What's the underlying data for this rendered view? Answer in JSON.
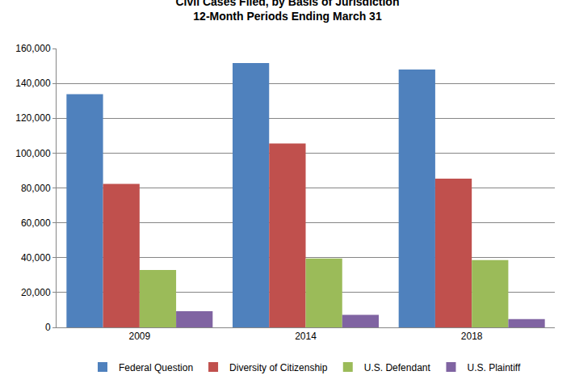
{
  "chart_data": {
    "type": "bar",
    "title": "Civil Cases Filed, by Basis of Jurisdiction",
    "subtitle": "12-Month Periods Ending March 31",
    "categories": [
      "2009",
      "2014",
      "2018"
    ],
    "series": [
      {
        "name": "Federal Question",
        "color": "#4f81bd",
        "values": [
          133800,
          151700,
          148000
        ]
      },
      {
        "name": "Diversity of Citizenship",
        "color": "#c0504d",
        "values": [
          82300,
          105500,
          85300
        ]
      },
      {
        "name": "U.S. Defendant",
        "color": "#9bbb59",
        "values": [
          32900,
          39500,
          38600
        ]
      },
      {
        "name": "U.S. Plaintiff",
        "color": "#8064a2",
        "values": [
          9300,
          7200,
          4800
        ]
      }
    ],
    "ylim": [
      0,
      160000
    ],
    "yticks": [
      0,
      {
        "value": 20000,
        "label": "20,000"
      },
      {
        "value": 40000,
        "label": "40,000"
      },
      {
        "value": 60000,
        "label": "60,000"
      },
      {
        "value": 80000,
        "label": "80,000"
      },
      {
        "value": 100000,
        "label": "100,000"
      },
      {
        "value": 120000,
        "label": "120,000"
      },
      {
        "value": 140000,
        "label": "140,000"
      },
      {
        "value": 160000,
        "label": "160,000"
      }
    ],
    "grid": true,
    "legend": "bottom"
  }
}
